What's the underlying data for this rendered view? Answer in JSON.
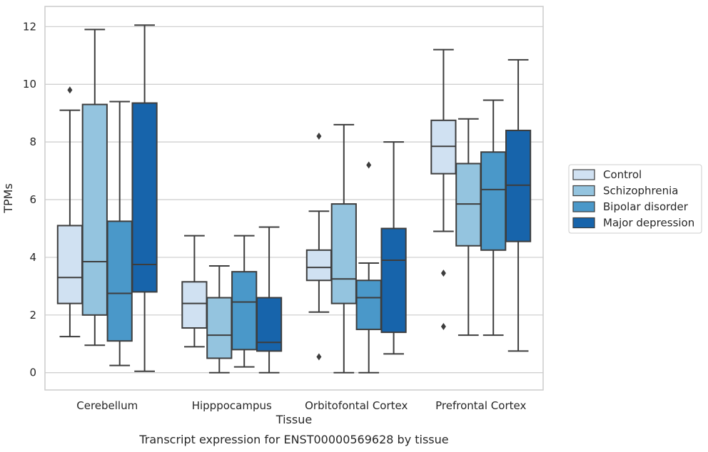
{
  "chart_data": {
    "type": "box",
    "xlabel": "Tissue",
    "ylabel": "TPMs",
    "caption": "Transcript expression for ENST00000569628 by tissue",
    "ylim": [
      -0.6,
      12.7
    ],
    "yticks": [
      0,
      2,
      4,
      6,
      8,
      10,
      12
    ],
    "grid": true,
    "legend_position": "right",
    "categories": [
      "Cerebellum",
      "Hipppocampus",
      "Orbitofontal Cortex",
      "Prefrontal Cortex"
    ],
    "series": [
      {
        "name": "Control",
        "color": "#d0e1f2",
        "boxes": [
          {
            "whislo": 1.25,
            "q1": 2.4,
            "med": 3.3,
            "q3": 5.1,
            "whishi": 9.1,
            "fliers": [
              9.8
            ]
          },
          {
            "whislo": 0.9,
            "q1": 1.55,
            "med": 2.4,
            "q3": 3.15,
            "whishi": 4.75,
            "fliers": []
          },
          {
            "whislo": 2.1,
            "q1": 3.2,
            "med": 3.65,
            "q3": 4.25,
            "whishi": 5.6,
            "fliers": [
              8.2,
              0.55
            ]
          },
          {
            "whislo": 4.9,
            "q1": 6.9,
            "med": 7.85,
            "q3": 8.75,
            "whishi": 11.2,
            "fliers": [
              3.45,
              1.6
            ]
          }
        ]
      },
      {
        "name": "Schizophrenia",
        "color": "#94c4df",
        "boxes": [
          {
            "whislo": 0.95,
            "q1": 2.0,
            "med": 3.85,
            "q3": 9.3,
            "whishi": 11.9,
            "fliers": []
          },
          {
            "whislo": 0.0,
            "q1": 0.5,
            "med": 1.3,
            "q3": 2.6,
            "whishi": 3.7,
            "fliers": []
          },
          {
            "whislo": 0.0,
            "q1": 2.4,
            "med": 3.25,
            "q3": 5.85,
            "whishi": 8.6,
            "fliers": []
          },
          {
            "whislo": 1.3,
            "q1": 4.4,
            "med": 5.85,
            "q3": 7.25,
            "whishi": 8.8,
            "fliers": []
          }
        ]
      },
      {
        "name": "Bipolar disorder",
        "color": "#4a98c9",
        "boxes": [
          {
            "whislo": 0.25,
            "q1": 1.1,
            "med": 2.75,
            "q3": 5.25,
            "whishi": 9.4,
            "fliers": []
          },
          {
            "whislo": 0.2,
            "q1": 0.8,
            "med": 2.45,
            "q3": 3.5,
            "whishi": 4.75,
            "fliers": []
          },
          {
            "whislo": 0.0,
            "q1": 1.5,
            "med": 2.6,
            "q3": 3.2,
            "whishi": 3.8,
            "fliers": [
              7.2
            ]
          },
          {
            "whislo": 1.3,
            "q1": 4.25,
            "med": 6.35,
            "q3": 7.65,
            "whishi": 9.45,
            "fliers": []
          }
        ]
      },
      {
        "name": "Major depression",
        "color": "#1764ab",
        "boxes": [
          {
            "whislo": 0.05,
            "q1": 2.8,
            "med": 3.75,
            "q3": 9.35,
            "whishi": 12.05,
            "fliers": []
          },
          {
            "whislo": 0.0,
            "q1": 0.75,
            "med": 1.05,
            "q3": 2.6,
            "whishi": 5.05,
            "fliers": []
          },
          {
            "whislo": 0.65,
            "q1": 1.4,
            "med": 3.9,
            "q3": 5.0,
            "whishi": 8.0,
            "fliers": []
          },
          {
            "whislo": 0.75,
            "q1": 4.55,
            "med": 6.5,
            "q3": 8.4,
            "whishi": 10.85,
            "fliers": []
          }
        ]
      }
    ]
  }
}
